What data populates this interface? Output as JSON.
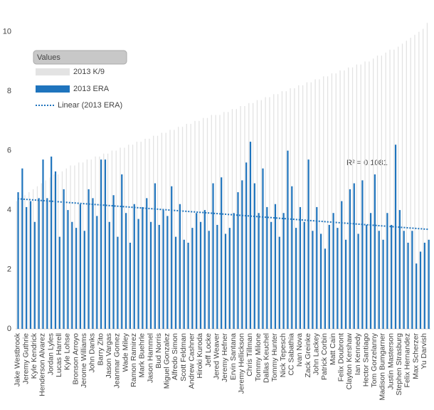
{
  "chart_data": {
    "type": "bar",
    "categories": [
      "Jake Westbrook",
      null,
      "Jeremy Guthrie",
      null,
      "Kyle Kendrick",
      null,
      "Henderson Alvarez",
      null,
      "Jordan Lyles",
      null,
      "Lucas Harrell",
      null,
      "Kyle Lohse",
      null,
      "Bronson Arroyo",
      null,
      "Jerome Williams",
      null,
      "John Danks",
      null,
      "Barry Zito",
      null,
      "Jason Vargas",
      null,
      "Jeanmar Gomez",
      null,
      "Wade Miley",
      null,
      "Ramon Ramirez",
      null,
      "Mark Buehrle",
      null,
      "Jason Hammel",
      null,
      "Bud Norris",
      null,
      "Miguel Gonzalez",
      null,
      "Alfredo Simon",
      null,
      "Scott Feldman",
      null,
      "Andrew Cashner",
      null,
      "Hiroki Kuroda",
      null,
      "Jeff Locke",
      null,
      "Jered Weaver",
      null,
      "Jeremy Hefner",
      null,
      "Ervin Santana",
      null,
      "Jeremy Hellickson",
      null,
      "Chris Tillman",
      null,
      "Tommy Milone",
      null,
      "Dallas Keuchel",
      null,
      "Tommy Hunter",
      null,
      "Nick Tepesch",
      null,
      "CC Sabathia",
      null,
      "Ivan Nova",
      null,
      "Zack Greinke",
      null,
      "John Lackey",
      null,
      "Patrick Corbin",
      null,
      "Matt Cain",
      null,
      "Felix Doubront",
      null,
      "Clayton Kershaw",
      null,
      "Ian Kennedy",
      null,
      "Hector Santiago",
      null,
      "Tom Gorzelanny",
      null,
      "Madison Bumgarner",
      null,
      "Justin Masterson",
      null,
      "Stephen Strasburg",
      null,
      "Felix Hernandez",
      null,
      "Max Scherzer",
      null,
      "Yu Darvish",
      null
    ],
    "series": [
      {
        "name": "2013 K/9",
        "color": "#e3e3e3",
        "values": [
          4.3,
          4.4,
          4.5,
          4.6,
          4.7,
          4.8,
          4.9,
          5.0,
          5.1,
          5.2,
          5.2,
          5.3,
          5.4,
          5.5,
          5.5,
          5.6,
          5.6,
          5.7,
          5.7,
          5.8,
          5.8,
          5.9,
          5.9,
          6.0,
          6.0,
          6.1,
          6.1,
          6.2,
          6.2,
          6.3,
          6.3,
          6.4,
          6.4,
          6.5,
          6.5,
          6.6,
          6.6,
          6.7,
          6.7,
          6.8,
          6.8,
          6.9,
          6.9,
          7.0,
          7.0,
          7.1,
          7.1,
          7.2,
          7.2,
          7.2,
          7.3,
          7.3,
          7.4,
          7.4,
          7.5,
          7.5,
          7.6,
          7.6,
          7.7,
          7.7,
          7.8,
          7.8,
          7.9,
          7.9,
          8.0,
          8.0,
          8.1,
          8.1,
          8.2,
          8.2,
          8.3,
          8.3,
          8.4,
          8.4,
          8.5,
          8.5,
          8.6,
          8.6,
          8.7,
          8.7,
          8.8,
          8.8,
          8.9,
          8.9,
          9.0,
          9.0,
          9.1,
          9.2,
          9.2,
          9.3,
          9.4,
          9.4,
          9.5,
          9.6,
          9.7,
          9.8,
          9.9,
          10.0,
          10.1,
          10.3
        ]
      },
      {
        "name": "2013 ERA",
        "color": "#1f74bd",
        "values": [
          4.6,
          5.4,
          4.1,
          4.3,
          3.6,
          4.4,
          5.7,
          4.4,
          5.8,
          5.3,
          3.1,
          4.7,
          4.0,
          3.6,
          3.4,
          4.2,
          3.3,
          4.7,
          4.4,
          3.8,
          5.7,
          5.7,
          3.6,
          4.5,
          3.1,
          5.2,
          3.9,
          2.9,
          4.2,
          3.7,
          4.1,
          4.4,
          3.6,
          4.9,
          3.5,
          4.0,
          3.8,
          4.8,
          3.1,
          4.2,
          3.0,
          2.9,
          3.4,
          3.9,
          3.6,
          4.0,
          3.3,
          4.9,
          3.5,
          5.1,
          3.2,
          3.4,
          3.9,
          4.6,
          5.0,
          5.6,
          6.3,
          4.9,
          3.9,
          5.4,
          4.1,
          3.6,
          4.2,
          3.1,
          3.9,
          6.0,
          4.8,
          3.4,
          4.1,
          3.6,
          5.7,
          3.3,
          4.1,
          3.2,
          2.7,
          3.5,
          3.9,
          3.4,
          4.3,
          3.0,
          4.7,
          4.9,
          3.2,
          5.0,
          3.5,
          3.9,
          5.2,
          3.3,
          3.0,
          3.9,
          3.5,
          6.2,
          4.0,
          3.3,
          2.9,
          3.3,
          2.2,
          2.6,
          2.9,
          3.0
        ]
      }
    ],
    "trendline": {
      "name": "Linear (2013 ERA)",
      "color": "#1f74bd",
      "start": 4.38,
      "end": 3.35
    },
    "annotation": "R² = 0.1081",
    "legend_title": "Values",
    "ylim": [
      0,
      10.4
    ],
    "yticks": [
      0,
      2,
      4,
      6,
      8,
      10
    ],
    "grid": false,
    "legend": "upper left"
  }
}
